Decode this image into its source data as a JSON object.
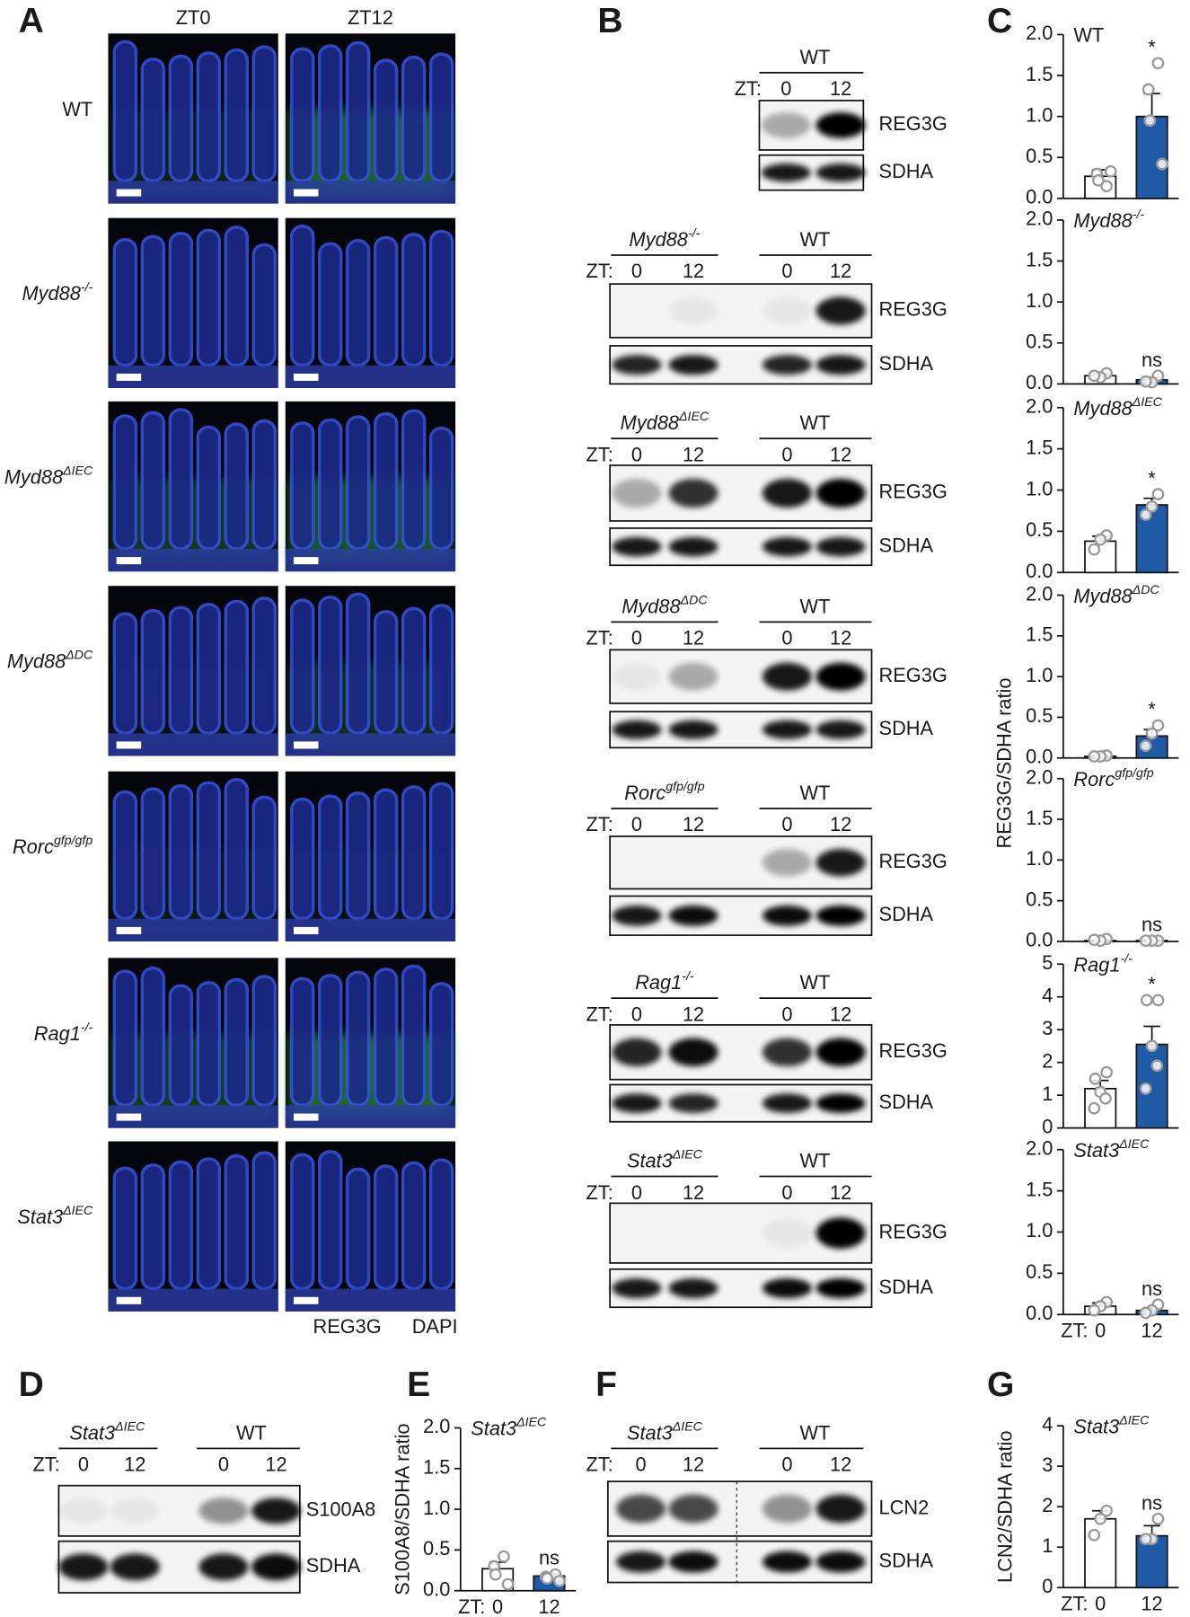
{
  "panels": {
    "A": {
      "letter": "A",
      "columns": [
        "ZT0",
        "ZT12"
      ],
      "rows": [
        {
          "name": "WT"
        },
        {
          "name": "Myd88",
          "sup": "-/-"
        },
        {
          "name": "Myd88",
          "sup": "ΔIEC"
        },
        {
          "name": "Myd88",
          "sup": "ΔDC"
        },
        {
          "name": "Rorc",
          "sup": "gfp/gfp"
        },
        {
          "name": "Rag1",
          "sup": "-/-"
        },
        {
          "name": "Stat3",
          "sup": "ΔIEC"
        }
      ],
      "legend": [
        {
          "label": "REG3G",
          "color": "#2ca846"
        },
        {
          "label": "DAPI",
          "color": "#1f4fb0"
        }
      ]
    },
    "B": {
      "letter": "B",
      "blots": [
        {
          "groups": [
            {
              "name": "WT"
            }
          ],
          "zt_label": "ZT:",
          "lanes": [
            "0",
            "12"
          ],
          "bands": [
            "REG3G",
            "SDHA"
          ]
        },
        {
          "groups": [
            {
              "name": "Myd88",
              "sup": "-/-"
            },
            {
              "name": "WT"
            }
          ],
          "zt_label": "ZT:",
          "lanes": [
            "0",
            "12",
            "0",
            "12"
          ],
          "bands": [
            "REG3G",
            "SDHA"
          ]
        },
        {
          "groups": [
            {
              "name": "Myd88",
              "sup": "ΔIEC"
            },
            {
              "name": "WT"
            }
          ],
          "zt_label": "ZT:",
          "lanes": [
            "0",
            "12",
            "0",
            "12"
          ],
          "bands": [
            "REG3G",
            "SDHA"
          ]
        },
        {
          "groups": [
            {
              "name": "Myd88",
              "sup": "ΔDC"
            },
            {
              "name": "WT"
            }
          ],
          "zt_label": "ZT:",
          "lanes": [
            "0",
            "12",
            "0",
            "12"
          ],
          "bands": [
            "REG3G",
            "SDHA"
          ]
        },
        {
          "groups": [
            {
              "name": "Rorc",
              "sup": "gfp/gfp"
            },
            {
              "name": "WT"
            }
          ],
          "zt_label": "ZT:",
          "lanes": [
            "0",
            "12",
            "0",
            "12"
          ],
          "bands": [
            "REG3G",
            "SDHA"
          ]
        },
        {
          "groups": [
            {
              "name": "Rag1",
              "sup": "-/-"
            },
            {
              "name": "WT"
            }
          ],
          "zt_label": "ZT:",
          "lanes": [
            "0",
            "12",
            "0",
            "12"
          ],
          "bands": [
            "REG3G",
            "SDHA"
          ]
        },
        {
          "groups": [
            {
              "name": "Stat3",
              "sup": "ΔIEC"
            },
            {
              "name": "WT"
            }
          ],
          "zt_label": "ZT:",
          "lanes": [
            "0",
            "12",
            "0",
            "12"
          ],
          "bands": [
            "REG3G",
            "SDHA"
          ]
        }
      ]
    },
    "C": {
      "letter": "C",
      "y_label": "REG3G/SDHA ratio"
    },
    "D": {
      "letter": "D",
      "blot": {
        "groups": [
          {
            "name": "Stat3",
            "sup": "ΔIEC"
          },
          {
            "name": "WT"
          }
        ],
        "zt_label": "ZT:",
        "lanes": [
          "0",
          "12",
          "0",
          "12"
        ],
        "bands": [
          "S100A8",
          "SDHA"
        ]
      }
    },
    "E": {
      "letter": "E"
    },
    "F": {
      "letter": "F",
      "blot": {
        "groups": [
          {
            "name": "Stat3",
            "sup": "ΔIEC"
          },
          {
            "name": "WT"
          }
        ],
        "zt_label": "ZT:",
        "lanes": [
          "0",
          "12",
          "0",
          "12"
        ],
        "bands": [
          "LCN2",
          "SDHA"
        ]
      }
    },
    "G": {
      "letter": "G"
    }
  },
  "chart_data": [
    {
      "type": "bar",
      "title": {
        "name": "WT"
      },
      "categories": [
        null,
        null
      ],
      "values": [
        0.27,
        1.0
      ],
      "errors": [
        0.08,
        0.28
      ],
      "points": [
        [
          0.15,
          0.3,
          0.22,
          0.33
        ],
        [
          1.65,
          1.33,
          0.95,
          0.42
        ]
      ],
      "colors": [
        "#ffffff",
        "#1f5aa6"
      ],
      "annotation": "*",
      "ylim": [
        0,
        2
      ],
      "yticks": [
        {
          "value": 0,
          "label": "0.0"
        },
        0.5,
        {
          "value": 1,
          "label": "1.0"
        },
        1.5,
        {
          "value": 2,
          "label": "2.0"
        }
      ]
    },
    {
      "type": "bar",
      "title": {
        "name": "Myd88",
        "sup": "-/-"
      },
      "categories": [
        null,
        null
      ],
      "values": [
        0.1,
        0.05
      ],
      "errors": [
        0.03,
        0.03
      ],
      "points": [
        [
          0.13,
          0.08,
          0.1
        ],
        [
          0.1,
          0.02,
          0.03
        ]
      ],
      "colors": [
        "#ffffff",
        "#1f5aa6"
      ],
      "annotation": "ns",
      "ylim": [
        0,
        2
      ],
      "yticks": [
        {
          "value": 0,
          "label": "0.0"
        },
        0.5,
        {
          "value": 1,
          "label": "1.0"
        },
        1.5,
        {
          "value": 2,
          "label": "2.0"
        }
      ]
    },
    {
      "type": "bar",
      "title": {
        "name": "Myd88",
        "sup": "ΔIEC"
      },
      "categories": [
        null,
        null
      ],
      "values": [
        0.38,
        0.82
      ],
      "errors": [
        0.06,
        0.08
      ],
      "points": [
        [
          0.45,
          0.4,
          0.28
        ],
        [
          0.95,
          0.8,
          0.7
        ]
      ],
      "colors": [
        "#ffffff",
        "#1f5aa6"
      ],
      "annotation": "*",
      "ylim": [
        0,
        2
      ],
      "yticks": [
        {
          "value": 0,
          "label": "0.0"
        },
        0.5,
        {
          "value": 1,
          "label": "1.0"
        },
        1.5,
        {
          "value": 2,
          "label": "2.0"
        }
      ]
    },
    {
      "type": "bar",
      "title": {
        "name": "Myd88",
        "sup": "ΔDC"
      },
      "categories": [
        null,
        null
      ],
      "values": [
        0.02,
        0.27
      ],
      "errors": [
        0.01,
        0.08
      ],
      "points": [
        [
          0.03,
          0.02,
          0.02
        ],
        [
          0.4,
          0.3,
          0.15
        ]
      ],
      "colors": [
        "#ffffff",
        "#1f5aa6"
      ],
      "annotation": "*",
      "ylim": [
        0,
        2
      ],
      "yticks": [
        {
          "value": 0,
          "label": "0.0"
        },
        0.5,
        {
          "value": 1,
          "label": "1.0"
        },
        1.5,
        {
          "value": 2,
          "label": "2.0"
        }
      ]
    },
    {
      "type": "bar",
      "title": {
        "name": "Rorc",
        "sup": "gfp/gfp"
      },
      "categories": [
        null,
        null
      ],
      "values": [
        0.01,
        0.01
      ],
      "errors": [
        0.01,
        0.005
      ],
      "points": [
        [
          0.03,
          0.01,
          0.02
        ],
        [
          0.01,
          0.01,
          0.01
        ]
      ],
      "colors": [
        "#ffffff",
        "#1f5aa6"
      ],
      "annotation": "ns",
      "ylim": [
        0,
        2
      ],
      "yticks": [
        {
          "value": 0,
          "label": "0.0"
        },
        0.5,
        {
          "value": 1,
          "label": "1.0"
        },
        1.5,
        {
          "value": 2,
          "label": "2.0"
        }
      ]
    },
    {
      "type": "bar",
      "title": {
        "name": "Rag1",
        "sup": "-/-"
      },
      "categories": [
        null,
        null
      ],
      "values": [
        1.2,
        2.55
      ],
      "errors": [
        0.25,
        0.55
      ],
      "points": [
        [
          1.7,
          1.5,
          1.1,
          0.9,
          0.6
        ],
        [
          3.9,
          3.9,
          2.5,
          1.9,
          1.2
        ]
      ],
      "colors": [
        "#ffffff",
        "#1f5aa6"
      ],
      "annotation": "*",
      "ylim": [
        0,
        5
      ],
      "yticks": [
        0,
        1,
        2,
        3,
        4,
        5
      ]
    },
    {
      "type": "bar",
      "title": {
        "name": "Stat3",
        "sup": "ΔIEC"
      },
      "categories": [
        "0",
        "12"
      ],
      "x_prefix": "ZT:",
      "values": [
        0.1,
        0.05
      ],
      "errors": [
        0.04,
        0.03
      ],
      "points": [
        [
          0.15,
          0.1,
          0.05
        ],
        [
          0.12,
          0.05,
          0.02
        ]
      ],
      "colors": [
        "#ffffff",
        "#1f5aa6"
      ],
      "annotation": "ns",
      "ylim": [
        0,
        2
      ],
      "yticks": [
        {
          "value": 0,
          "label": "0.0"
        },
        0.5,
        {
          "value": 1,
          "label": "1.0"
        },
        1.5,
        {
          "value": 2,
          "label": "2.0"
        }
      ]
    },
    {
      "type": "bar",
      "title": {
        "name": "Stat3",
        "sup": "ΔIEC"
      },
      "y_label": "S100A8/SDHA ratio",
      "categories": [
        "0",
        "12"
      ],
      "x_prefix": "ZT:",
      "values": [
        0.27,
        0.18
      ],
      "errors": [
        0.08,
        0.03
      ],
      "points": [
        [
          0.42,
          0.3,
          0.2,
          0.08
        ],
        [
          0.2,
          0.17,
          0.15,
          0.12
        ]
      ],
      "colors": [
        "#ffffff",
        "#1f5aa6"
      ],
      "annotation": "ns",
      "ylim": [
        0,
        2
      ],
      "yticks": [
        {
          "value": 0,
          "label": "0.0"
        },
        0.5,
        {
          "value": 1,
          "label": "1.0"
        },
        1.5,
        {
          "value": 2,
          "label": "2.0"
        }
      ]
    },
    {
      "type": "bar",
      "title": {
        "name": "Stat3",
        "sup": "ΔIEC"
      },
      "y_label": "LCN2/SDHA ratio",
      "categories": [
        "0",
        "12"
      ],
      "x_prefix": "ZT:",
      "values": [
        1.7,
        1.28
      ],
      "errors": [
        0.2,
        0.25
      ],
      "points": [
        [
          1.9,
          1.7,
          1.3
        ],
        [
          1.7,
          1.2,
          1.2
        ]
      ],
      "colors": [
        "#ffffff",
        "#1f5aa6"
      ],
      "annotation": "ns",
      "ylim": [
        0,
        4
      ],
      "yticks": [
        0,
        1,
        2,
        3,
        4
      ]
    }
  ]
}
